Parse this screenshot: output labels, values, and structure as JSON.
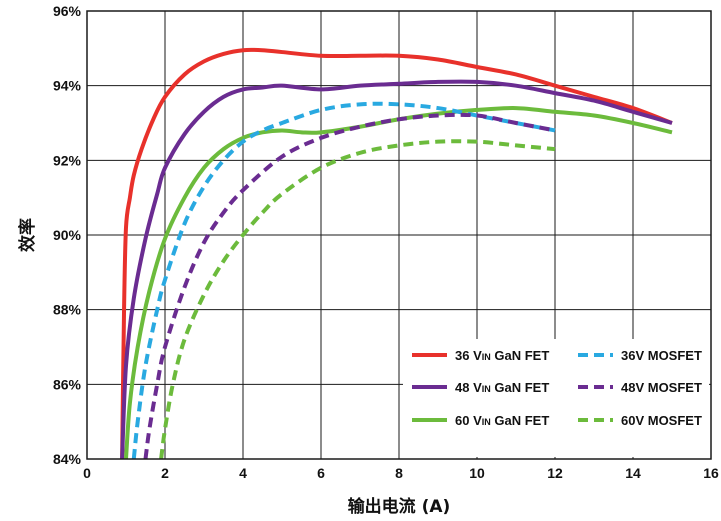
{
  "chart_data": {
    "type": "line",
    "xlabel": "输出电流 (A)",
    "ylabel": "效率",
    "xlim": [
      0,
      16
    ],
    "ylim": [
      84,
      96
    ],
    "x_ticks": [
      0,
      2,
      4,
      6,
      8,
      10,
      12,
      14,
      16
    ],
    "y_ticks": [
      84,
      86,
      88,
      90,
      92,
      94,
      96
    ],
    "x_tick_labels": [
      "0",
      "2",
      "4",
      "6",
      "8",
      "10",
      "12",
      "14",
      "16"
    ],
    "y_tick_labels": [
      "84%",
      "86%",
      "88%",
      "90%",
      "92%",
      "94%",
      "96%"
    ],
    "grid": true,
    "legend_position": "bottom-right",
    "series": [
      {
        "name": "36 VIN GaN FET",
        "legend": {
          "prefix": "36 V",
          "sub": "IN",
          "suffix": " GaN FET"
        },
        "color": "#e8312b",
        "dash": "solid",
        "x": [
          0.9,
          0.95,
          1.0,
          1.1,
          1.2,
          1.4,
          1.7,
          2.0,
          2.5,
          3.0,
          3.5,
          4.0,
          4.5,
          5.0,
          6.0,
          7.0,
          8.0,
          9.0,
          10.0,
          11.0,
          12.0,
          13.0,
          14.0,
          15.0
        ],
        "y": [
          84.0,
          88.0,
          90.2,
          91.0,
          91.6,
          92.3,
          93.1,
          93.7,
          94.3,
          94.65,
          94.85,
          94.95,
          94.95,
          94.9,
          94.8,
          94.8,
          94.8,
          94.7,
          94.5,
          94.3,
          94.0,
          93.7,
          93.4,
          93.0
        ]
      },
      {
        "name": "48 VIN GaN FET",
        "legend": {
          "prefix": "48 V",
          "sub": "IN",
          "suffix": " GaN FET"
        },
        "color": "#6a2c91",
        "dash": "solid",
        "x": [
          0.9,
          1.0,
          1.2,
          1.5,
          1.8,
          2.0,
          2.5,
          3.0,
          3.5,
          4.0,
          4.5,
          5.0,
          6.0,
          7.0,
          8.0,
          9.0,
          10.0,
          11.0,
          12.0,
          13.0,
          14.0,
          15.0
        ],
        "y": [
          84.0,
          86.5,
          88.3,
          89.9,
          91.1,
          91.8,
          92.7,
          93.3,
          93.7,
          93.9,
          93.95,
          94.0,
          93.9,
          94.0,
          94.05,
          94.1,
          94.1,
          94.0,
          93.8,
          93.6,
          93.3,
          93.0
        ]
      },
      {
        "name": "60 VIN GaN FET",
        "legend": {
          "prefix": "60 V",
          "sub": "IN",
          "suffix": " GaN FET"
        },
        "color": "#6cbb3c",
        "dash": "solid",
        "x": [
          1.0,
          1.1,
          1.3,
          1.6,
          2.0,
          2.5,
          3.0,
          3.5,
          4.0,
          4.5,
          5.0,
          5.5,
          6.0,
          7.0,
          8.0,
          9.0,
          10.0,
          11.0,
          12.0,
          13.0,
          14.0,
          15.0
        ],
        "y": [
          84.0,
          85.5,
          87.0,
          88.5,
          89.9,
          91.0,
          91.8,
          92.3,
          92.6,
          92.75,
          92.8,
          92.75,
          92.75,
          92.9,
          93.1,
          93.25,
          93.35,
          93.4,
          93.3,
          93.2,
          93.0,
          92.75
        ]
      },
      {
        "name": "36V MOSFET",
        "legend": {
          "prefix": "36V MOSFET",
          "sub": "",
          "suffix": ""
        },
        "color": "#29a9e1",
        "dash": "dashed",
        "x": [
          1.2,
          1.3,
          1.5,
          1.8,
          2.0,
          2.5,
          3.0,
          3.5,
          4.0,
          4.5,
          5.0,
          6.0,
          7.0,
          8.0,
          9.0,
          10.0,
          11.0,
          12.0
        ],
        "y": [
          84.0,
          85.0,
          86.5,
          88.0,
          88.8,
          90.3,
          91.3,
          92.0,
          92.5,
          92.8,
          93.0,
          93.35,
          93.5,
          93.5,
          93.4,
          93.2,
          93.0,
          92.8
        ]
      },
      {
        "name": "48V MOSFET",
        "legend": {
          "prefix": "48V MOSFET",
          "sub": "",
          "suffix": ""
        },
        "color": "#6a2c91",
        "dash": "dashed",
        "x": [
          1.5,
          1.6,
          1.8,
          2.0,
          2.5,
          3.0,
          3.5,
          4.0,
          5.0,
          6.0,
          7.0,
          8.0,
          9.0,
          10.0,
          11.0,
          12.0
        ],
        "y": [
          84.0,
          84.8,
          86.0,
          87.0,
          88.6,
          89.8,
          90.6,
          91.2,
          92.1,
          92.6,
          92.9,
          93.1,
          93.2,
          93.2,
          93.0,
          92.8
        ]
      },
      {
        "name": "60V MOSFET",
        "legend": {
          "prefix": "60V MOSFET",
          "sub": "",
          "suffix": ""
        },
        "color": "#6cbb3c",
        "dash": "dashed",
        "x": [
          1.9,
          2.0,
          2.2,
          2.5,
          3.0,
          3.5,
          4.0,
          4.5,
          5.0,
          6.0,
          7.0,
          8.0,
          9.0,
          10.0,
          11.0,
          12.0
        ],
        "y": [
          84.0,
          84.8,
          86.0,
          87.2,
          88.4,
          89.3,
          90.0,
          90.6,
          91.1,
          91.8,
          92.2,
          92.4,
          92.5,
          92.5,
          92.4,
          92.3
        ]
      }
    ]
  }
}
